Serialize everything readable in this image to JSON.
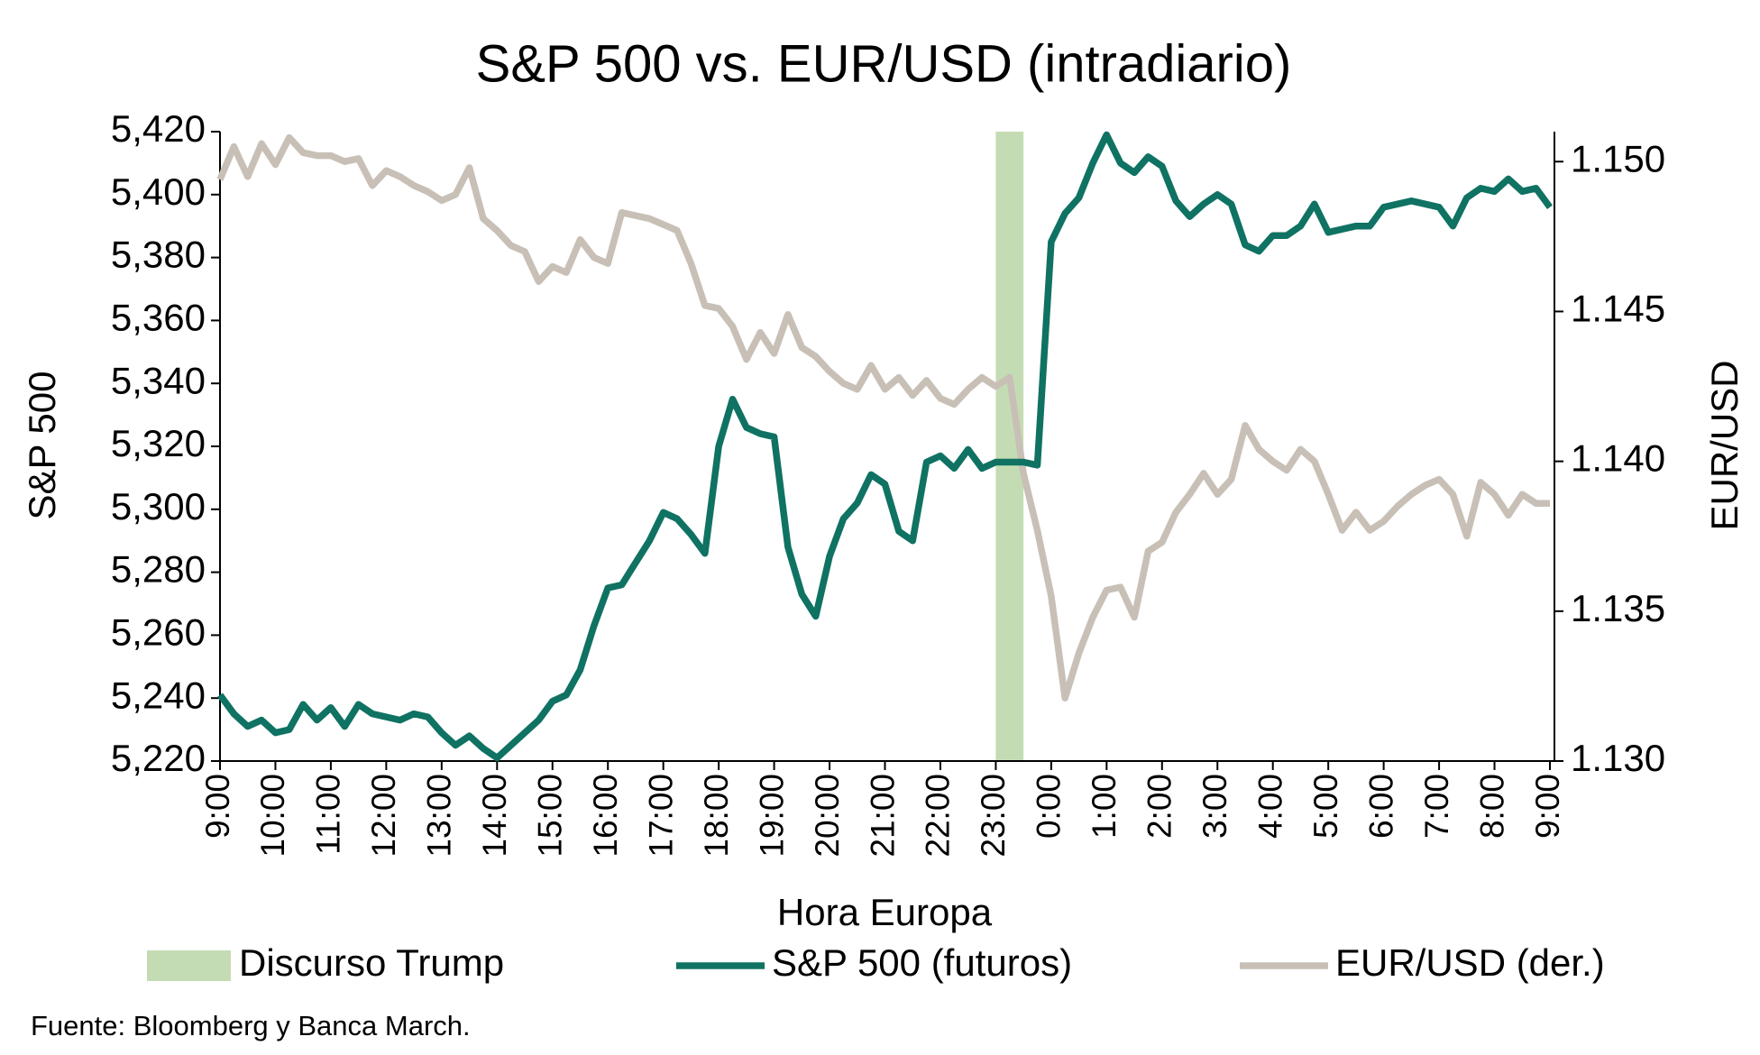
{
  "chart_data": {
    "type": "line",
    "title": "S&P 500 vs. EUR/USD (intradiario)",
    "x_label": "Hora Europa",
    "y_label": "S&P 500",
    "y2_label": "EUR/USD",
    "source": "Fuente: Bloomberg y Banca March.",
    "categories": [
      "9:00",
      null,
      null,
      null,
      "10:00",
      null,
      null,
      null,
      "11:00",
      null,
      null,
      null,
      "12:00",
      null,
      null,
      null,
      "13:00",
      null,
      null,
      null,
      "14:00",
      null,
      null,
      null,
      "15:00",
      null,
      null,
      null,
      "16:00",
      null,
      null,
      null,
      "17:00",
      null,
      null,
      null,
      "18:00",
      null,
      null,
      null,
      "19:00",
      null,
      null,
      null,
      "20:00",
      null,
      null,
      null,
      "21:00",
      null,
      null,
      null,
      "22:00",
      null,
      null,
      null,
      "23:00",
      null,
      null,
      null,
      "0:00",
      null,
      null,
      null,
      "1:00",
      null,
      null,
      null,
      "2:00",
      null,
      null,
      null,
      "3:00",
      null,
      null,
      null,
      "4:00",
      null,
      null,
      null,
      "5:00",
      null,
      null,
      null,
      "6:00",
      null,
      null,
      null,
      "7:00",
      null,
      null,
      null,
      "8:00",
      null,
      null,
      null,
      "9:00"
    ],
    "highlight": {
      "name": "Discurso Trump",
      "color": "#c4dcb3",
      "span": [
        56,
        58
      ]
    },
    "series": [
      {
        "name": "S&P 500 (futuros)",
        "color": "#0f7262",
        "axis": "y",
        "values": [
          5241,
          5235,
          5231,
          5233,
          5229,
          5230,
          5238,
          5233,
          5237,
          5231,
          5238,
          5235,
          5234,
          5233,
          5235,
          5234,
          5229,
          5225,
          5228,
          5224,
          5221,
          5225,
          5229,
          5233,
          5239,
          5241,
          5249,
          5263,
          5275,
          5276,
          5283,
          5290,
          5299,
          5297,
          5292,
          5286,
          5320,
          5335,
          5326,
          5324,
          5323,
          5288,
          5273,
          5266,
          5285,
          5297,
          5302,
          5311,
          5308,
          5293,
          5290,
          5315,
          5317,
          5313,
          5319,
          5313,
          5315,
          5315,
          5315,
          5314,
          5385,
          5394,
          5399,
          5410,
          5419,
          5410,
          5407,
          5412,
          5409,
          5398,
          5393,
          5397,
          5400,
          5397,
          5384,
          5382,
          5387,
          5387,
          5390,
          5397,
          5388,
          5389,
          5390,
          5390,
          5396,
          5397,
          5398,
          5397,
          5396,
          5390,
          5399,
          5402,
          5401,
          5405,
          5401,
          5402,
          5396
        ]
      },
      {
        "name": "EUR/USD (der.)",
        "color": "#c8c0b6",
        "axis": "y2",
        "values": [
          1.1494,
          1.1505,
          1.1495,
          1.1506,
          1.1499,
          1.1508,
          1.1503,
          1.1502,
          1.1502,
          1.15,
          1.1501,
          1.1492,
          1.1497,
          1.1495,
          1.1492,
          1.149,
          1.1487,
          1.1489,
          1.1498,
          1.1481,
          1.1477,
          1.1472,
          1.147,
          1.146,
          1.1465,
          1.1463,
          1.1474,
          1.1468,
          1.1466,
          1.1483,
          1.1482,
          1.1481,
          1.1479,
          1.1477,
          1.1466,
          1.1452,
          1.1451,
          1.1445,
          1.1434,
          1.1443,
          1.1436,
          1.1449,
          1.1438,
          1.1435,
          1.143,
          1.1426,
          1.1424,
          1.1432,
          1.1424,
          1.1428,
          1.1422,
          1.1427,
          1.1421,
          1.1419,
          1.1424,
          1.1428,
          1.1425,
          1.1428,
          1.1396,
          1.1377,
          1.1355,
          1.1321,
          1.1336,
          1.1348,
          1.1357,
          1.1358,
          1.1348,
          1.137,
          1.1373,
          1.1383,
          1.1389,
          1.1396,
          1.1389,
          1.1394,
          1.1412,
          1.1404,
          1.14,
          1.1397,
          1.1404,
          1.14,
          1.1389,
          1.1377,
          1.1383,
          1.1377,
          1.138,
          1.1385,
          1.1389,
          1.1392,
          1.1394,
          1.1389,
          1.1375,
          1.1393,
          1.1389,
          1.1382,
          1.1389,
          1.1386,
          1.1386
        ]
      }
    ],
    "ylim": [
      5220,
      5420
    ],
    "yticks": [
      {
        "value": 5220,
        "label": "5,220"
      },
      {
        "value": 5240,
        "label": "5,240"
      },
      {
        "value": 5260,
        "label": "5,260"
      },
      {
        "value": 5280,
        "label": "5,280"
      },
      {
        "value": 5300,
        "label": "5,300"
      },
      {
        "value": 5320,
        "label": "5,320"
      },
      {
        "value": 5340,
        "label": "5,340"
      },
      {
        "value": 5360,
        "label": "5,360"
      },
      {
        "value": 5380,
        "label": "5,380"
      },
      {
        "value": 5400,
        "label": "5,400"
      },
      {
        "value": 5420,
        "label": "5,420"
      }
    ],
    "y2lim": [
      1.13,
      1.151
    ],
    "y2ticks": [
      {
        "value": 1.13,
        "label": "1.130"
      },
      {
        "value": 1.135,
        "label": "1.135"
      },
      {
        "value": 1.14,
        "label": "1.140"
      },
      {
        "value": 1.145,
        "label": "1.145"
      },
      {
        "value": 1.15,
        "label": "1.150"
      }
    ],
    "grid": false
  }
}
